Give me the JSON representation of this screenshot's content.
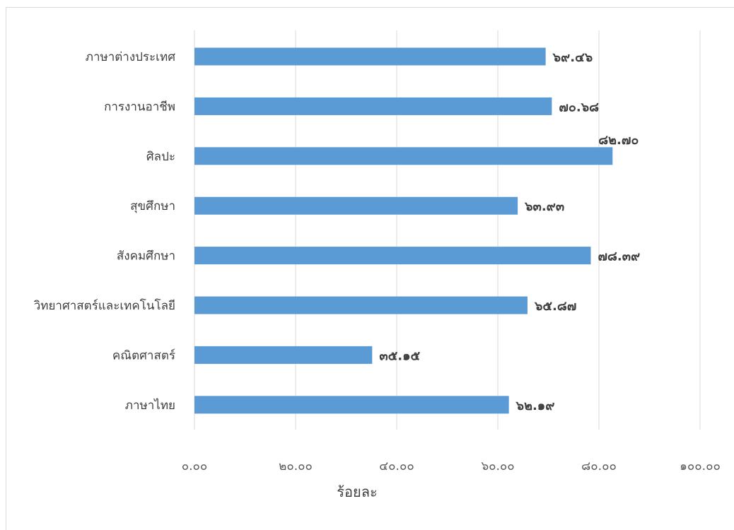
{
  "chart_data": {
    "type": "bar",
    "orientation": "horizontal",
    "categories": [
      "ภาษาต่างประเทศ",
      "การงานอาชีพ",
      "ศิลปะ",
      "สุขศึกษา",
      "สังคมศึกษา",
      "วิทยาศาสตร์และเทคโนโลยี",
      "คณิตศาสตร์",
      "ภาษาไทย"
    ],
    "values": [
      69.46,
      70.68,
      82.7,
      63.93,
      78.39,
      65.87,
      35.15,
      62.19
    ],
    "value_labels": [
      "๖๙.๔๖",
      "๗๐.๖๘",
      "๘๒.๗๐",
      "๖๓.๙๓",
      "๗๘.๓๙",
      "๖๕.๘๗",
      "๓๕.๑๕",
      "๖๒.๑๙"
    ],
    "xlim": [
      0,
      100
    ],
    "xticks": [
      0,
      20,
      40,
      60,
      80,
      100
    ],
    "xtick_labels": [
      "๐.๐๐",
      "๒๐.๐๐",
      "๔๐.๐๐",
      "๖๐.๐๐",
      "๘๐.๐๐",
      "๑๐๐.๐๐"
    ],
    "xlabel": "ร้อยละ",
    "ylabel": "",
    "title": "",
    "grid": "vertical",
    "legend": "none",
    "bar_color": "#5b9bd5",
    "grid_color": "#d9d9d9"
  }
}
